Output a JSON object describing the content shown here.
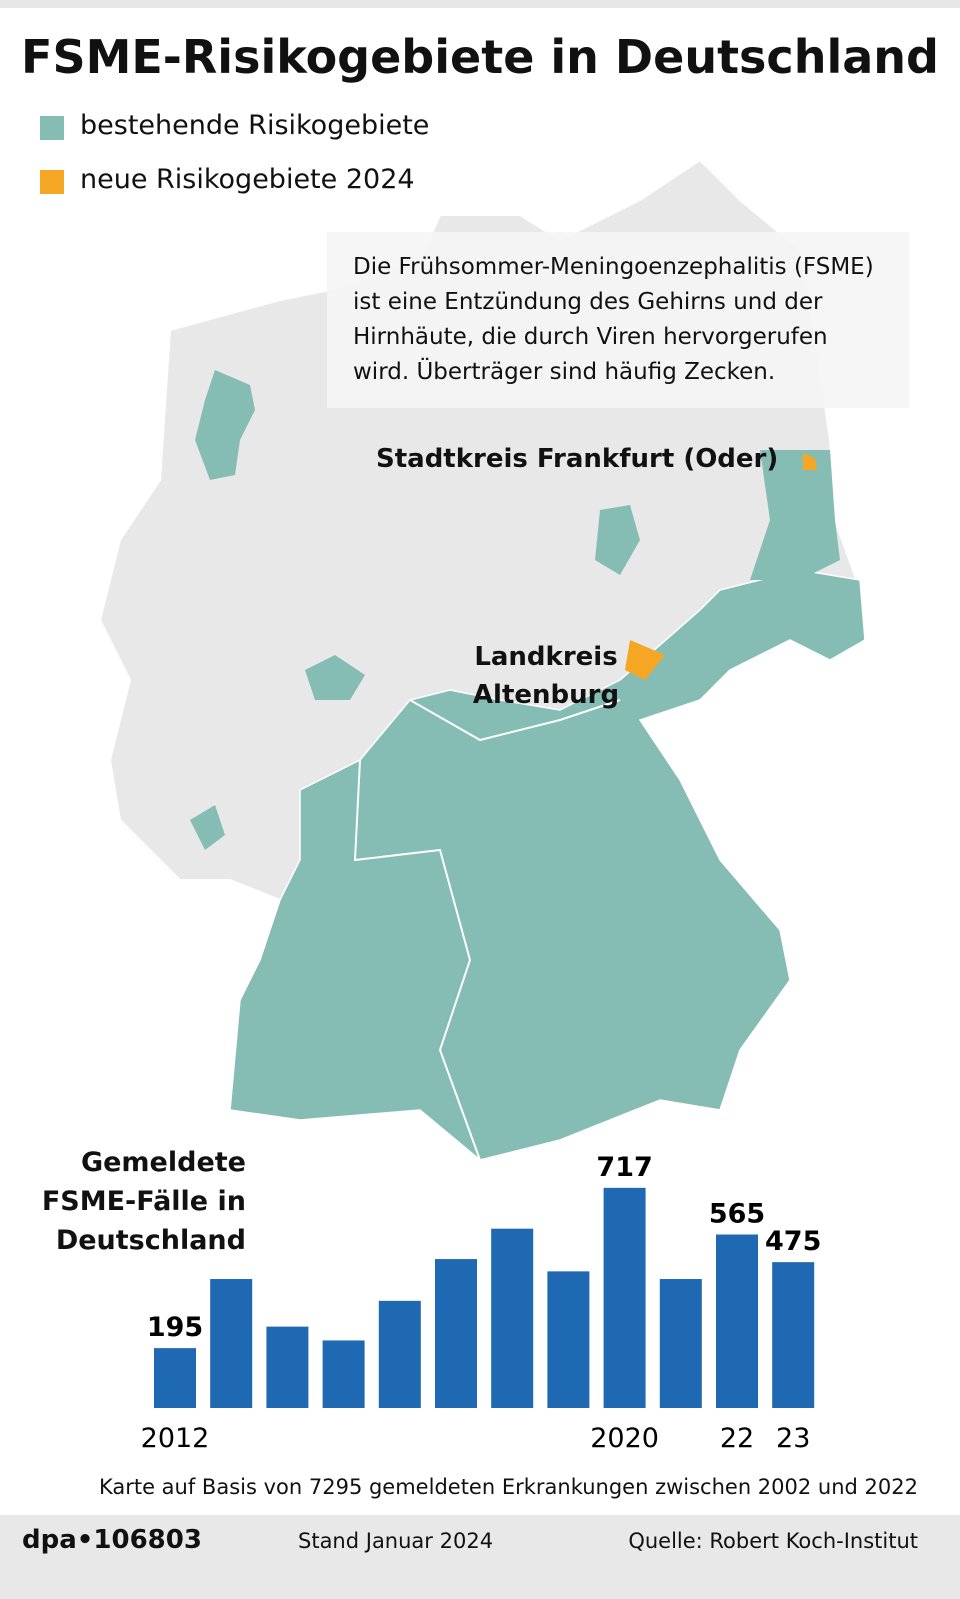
{
  "header": {
    "title": "FSME-Risikogebiete in Deutschland"
  },
  "legend": [
    {
      "label": "bestehende Risikogebiete",
      "color": "#85bdb4"
    },
    {
      "label": "neue Risikogebiete 2024",
      "color": "#f5a623"
    }
  ],
  "info_text": "Die Frühsommer-Meningoenzephalitis (FSME) ist eine Entzündung des Gehirns und der Hirnhäute, die durch Viren hervorgerufen wird. Überträger sind häufig Zecken.",
  "map_labels": [
    "Stadtkreis Frankfurt (Oder)",
    "Landkreis Altenburg"
  ],
  "chart_data": {
    "type": "bar",
    "title": "Gemeldete FSME-Fälle in Deutschland",
    "categories": [
      "2012",
      null,
      null,
      null,
      null,
      null,
      null,
      null,
      "2020",
      null,
      "22",
      "23"
    ],
    "values": [
      195,
      420,
      265,
      220,
      349,
      485,
      584,
      445,
      717,
      420,
      565,
      475
    ],
    "value_labels": [
      "195",
      null,
      null,
      null,
      null,
      null,
      null,
      null,
      "717",
      null,
      "565",
      "475"
    ],
    "color": "#1f69b3",
    "ylim": [
      0,
      750
    ]
  },
  "footnote": "Karte auf Basis von 7295 gemeldeten Erkrankungen zwischen 2002 und 2022",
  "footer": {
    "agency": "dpa•106803",
    "date": "Stand Januar 2024",
    "source": "Quelle: Robert Koch-Institut"
  }
}
